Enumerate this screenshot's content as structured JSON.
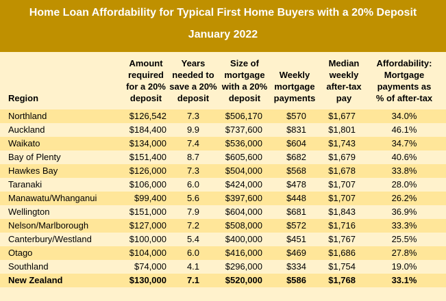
{
  "header": {
    "title": "Home Loan Affordability for Typical First Home Buyers with a 20% Deposit",
    "subtitle": "January 2022"
  },
  "table": {
    "columns": [
      [
        "Region"
      ],
      [
        "Amount",
        "required",
        "for a 20%",
        "deposit"
      ],
      [
        "Years",
        "needed to",
        "save a 20%",
        "deposit"
      ],
      [
        "Size of",
        "mortgage",
        "with a 20%",
        "deposit"
      ],
      [
        "Weekly",
        "mortgage",
        "payments"
      ],
      [
        "Median",
        "weekly",
        "after-tax",
        "pay"
      ],
      [
        "Affordability:",
        "Mortgage",
        "payments as",
        "% of after-tax"
      ]
    ],
    "rows": [
      [
        "Northland",
        "$126,542",
        "7.3",
        "$506,170",
        "$570",
        "$1,677",
        "34.0%"
      ],
      [
        "Auckland",
        "$184,400",
        "9.9",
        "$737,600",
        "$831",
        "$1,801",
        "46.1%"
      ],
      [
        "Waikato",
        "$134,000",
        "7.4",
        "$536,000",
        "$604",
        "$1,743",
        "34.7%"
      ],
      [
        "Bay of Plenty",
        "$151,400",
        "8.7",
        "$605,600",
        "$682",
        "$1,679",
        "40.6%"
      ],
      [
        "Hawkes Bay",
        "$126,000",
        "7.3",
        "$504,000",
        "$568",
        "$1,678",
        "33.8%"
      ],
      [
        "Taranaki",
        "$106,000",
        "6.0",
        "$424,000",
        "$478",
        "$1,707",
        "28.0%"
      ],
      [
        "Manawatu/Whanganui",
        "$99,400",
        "5.6",
        "$397,600",
        "$448",
        "$1,707",
        "26.2%"
      ],
      [
        "Wellington",
        "$151,000",
        "7.9",
        "$604,000",
        "$681",
        "$1,843",
        "36.9%"
      ],
      [
        "Nelson/Marlborough",
        "$127,000",
        "7.2",
        "$508,000",
        "$572",
        "$1,716",
        "33.3%"
      ],
      [
        "Canterbury/Westland",
        "$100,000",
        "5.4",
        "$400,000",
        "$451",
        "$1,767",
        "25.5%"
      ],
      [
        "Otago",
        "$104,000",
        "6.0",
        "$416,000",
        "$469",
        "$1,686",
        "27.8%"
      ],
      [
        "Southland",
        "$74,000",
        "4.1",
        "$296,000",
        "$334",
        "$1,754",
        "19.0%"
      ],
      [
        "New Zealand",
        "$130,000",
        "7.1",
        "$520,000",
        "$586",
        "$1,768",
        "33.1%"
      ]
    ]
  }
}
